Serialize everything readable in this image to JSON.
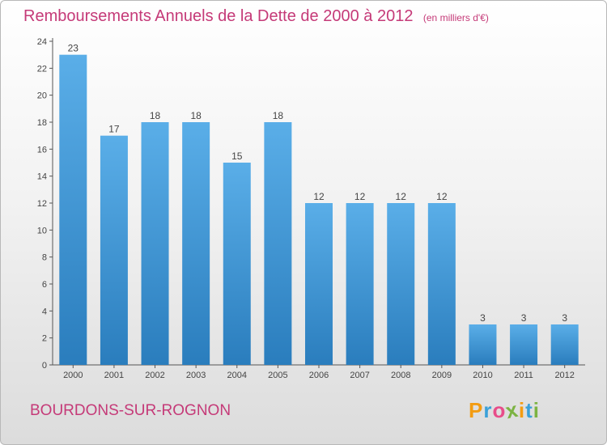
{
  "title": "Remboursements Annuels de la Dette de 2000 à 2012",
  "unit": "(en milliers d'€)",
  "commune": "BOURDONS-SUR-ROGNON",
  "logo": {
    "letters": [
      "P",
      "r",
      "o",
      "x",
      "i",
      "t",
      "i"
    ],
    "colors": [
      "#f39c12",
      "#3aa0d8",
      "#e84d8a",
      "#7cb342",
      "#f39c12",
      "#3aa0d8",
      "#7cb342"
    ]
  },
  "colors": {
    "bar_top": "#5aaee8",
    "bar_bottom": "#2a7dbd",
    "title": "#c53a78"
  },
  "chart_data": {
    "type": "bar",
    "categories": [
      "2000",
      "2001",
      "2002",
      "2003",
      "2004",
      "2005",
      "2006",
      "2007",
      "2008",
      "2009",
      "2010",
      "2011",
      "2012"
    ],
    "values": [
      23,
      17,
      18,
      18,
      15,
      18,
      12,
      12,
      12,
      12,
      3,
      3,
      3
    ],
    "data_labels": [
      "23",
      "17",
      "18",
      "18",
      "15",
      "18",
      "12",
      "12",
      "12",
      "12",
      "3",
      "3",
      "3"
    ],
    "ylim": [
      0,
      24
    ],
    "yticks": [
      0,
      2,
      4,
      6,
      8,
      10,
      12,
      14,
      16,
      18,
      20,
      22,
      24
    ],
    "grid": false,
    "xlabel": "",
    "ylabel": ""
  }
}
